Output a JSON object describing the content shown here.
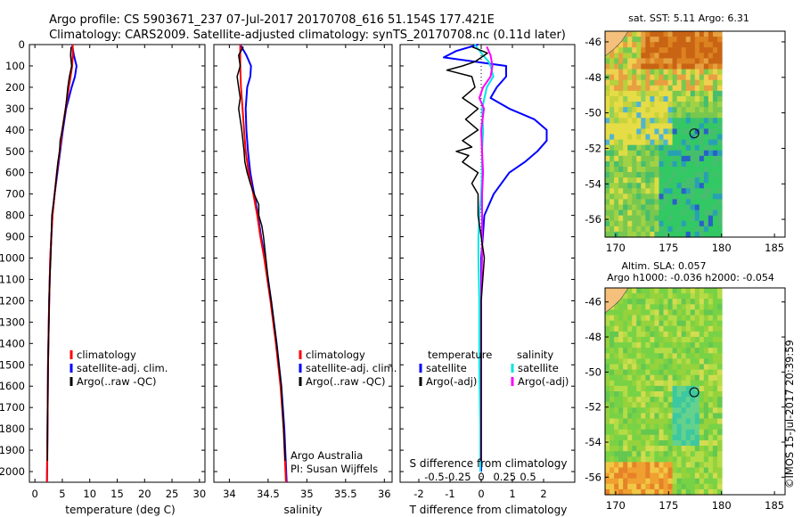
{
  "header": {
    "line1": "Argo profile: CS 5903671_237 07-Jul-2017 20170708_616 51.154S 177.421E",
    "line2": "Climatology: CARS2009. Satellite-adjusted climatology: synTS_20170708.nc (0.11d later)"
  },
  "colors": {
    "climatology": "#ff0000",
    "satellite": "#0000ff",
    "argo": "#000000",
    "salinity_satellite": "#00e5e5",
    "salinity_argo": "#ff00ff"
  },
  "chart_data": [
    {
      "type": "line",
      "panel": "temperature",
      "xlabel": "temperature (deg C)",
      "xlim": [
        -1,
        31
      ],
      "xticks": [
        "0",
        "5",
        "10",
        "15",
        "20",
        "25",
        "30"
      ],
      "ylim": [
        2050,
        0
      ],
      "yticks": [
        "0",
        "100",
        "200",
        "300",
        "400",
        "500",
        "600",
        "700",
        "800",
        "900",
        "1000",
        "1100",
        "1200",
        "1300",
        "1400",
        "1500",
        "1600",
        "1700",
        "1800",
        "1900",
        "2000"
      ],
      "legend": [
        "climatology",
        "satellite-adj. clim.",
        "Argo(..raw -QC)"
      ],
      "series": [
        {
          "name": "climatology",
          "depth": [
            0,
            50,
            100,
            150,
            200,
            250,
            300,
            400,
            500,
            600,
            700,
            800,
            900,
            1000,
            1200,
            1500,
            1800,
            2050
          ],
          "values": [
            6.9,
            6.9,
            6.8,
            6.5,
            6.2,
            5.9,
            5.6,
            5.0,
            4.5,
            4.0,
            3.6,
            3.2,
            3.0,
            2.8,
            2.6,
            2.4,
            2.3,
            2.2
          ]
        },
        {
          "name": "satellite-adj. clim.",
          "depth": [
            0,
            50,
            100,
            150,
            200,
            250,
            300,
            400,
            500,
            600,
            700,
            800,
            900,
            1000,
            1200,
            1500,
            1800,
            2050
          ],
          "values": [
            6.8,
            7.1,
            7.6,
            7.3,
            6.7,
            6.2,
            5.7,
            5.1,
            4.6,
            4.1,
            3.6,
            3.2,
            3.0,
            2.8,
            2.6,
            2.4,
            2.3,
            2.2
          ]
        },
        {
          "name": "Argo(..raw -QC)",
          "depth": [
            10,
            50,
            100,
            150,
            200,
            250,
            300,
            400,
            450,
            500,
            550,
            600,
            700,
            800,
            900,
            1000,
            1100,
            1200,
            1500,
            1800,
            1950
          ],
          "values": [
            6.6,
            6.5,
            6.7,
            6.3,
            6.0,
            5.8,
            5.6,
            5.0,
            4.6,
            4.5,
            4.2,
            4.0,
            3.6,
            3.1,
            3.0,
            2.9,
            2.7,
            2.6,
            2.4,
            2.3,
            2.3
          ]
        }
      ]
    },
    {
      "type": "line",
      "panel": "salinity",
      "xlabel": "salinity",
      "xlim": [
        33.8,
        36.1
      ],
      "xticks": [
        "34",
        "34.5",
        "35",
        "35.5",
        "36"
      ],
      "ylim": [
        2050,
        0
      ],
      "legend": [
        "climatology",
        "satellite-adj. clim.",
        "Argo(..raw -QC)"
      ],
      "annotations": [
        "Argo Australia",
        "PI: Susan Wijffels"
      ],
      "series": [
        {
          "name": "climatology",
          "depth": [
            0,
            100,
            200,
            300,
            400,
            500,
            600,
            700,
            800,
            900,
            1000,
            1200,
            1400,
            1600,
            1800,
            2050
          ],
          "values": [
            34.14,
            34.14,
            34.15,
            34.17,
            34.19,
            34.21,
            34.25,
            34.31,
            34.36,
            34.4,
            34.45,
            34.53,
            34.6,
            34.66,
            34.7,
            34.73
          ]
        },
        {
          "name": "satellite-adj. clim.",
          "depth": [
            0,
            50,
            100,
            150,
            200,
            300,
            400,
            500,
            600,
            700,
            800,
            900,
            1000,
            1200,
            1400,
            1600,
            1800,
            2050
          ],
          "values": [
            34.14,
            34.22,
            34.28,
            34.27,
            34.23,
            34.21,
            34.22,
            34.24,
            34.27,
            34.32,
            34.37,
            34.41,
            34.46,
            34.54,
            34.61,
            34.67,
            34.71,
            34.74
          ]
        },
        {
          "name": "Argo(..raw -QC)",
          "depth": [
            10,
            50,
            100,
            150,
            200,
            250,
            300,
            400,
            500,
            550,
            600,
            650,
            700,
            750,
            800,
            850,
            900,
            1000,
            1100,
            1200,
            1400,
            1600,
            1800,
            1950
          ],
          "values": [
            34.18,
            34.12,
            34.14,
            34.1,
            34.12,
            34.14,
            34.12,
            34.16,
            34.19,
            34.2,
            34.23,
            34.27,
            34.32,
            34.38,
            34.38,
            34.42,
            34.44,
            34.47,
            34.5,
            34.54,
            34.61,
            34.67,
            34.7,
            34.72
          ]
        }
      ]
    },
    {
      "type": "line",
      "panel": "differences",
      "xlabel": "T difference from climatology",
      "xlim": [
        -2.6,
        3.0
      ],
      "xticks": [
        "-2",
        "-1",
        "0",
        "1",
        "2"
      ],
      "xlabel_top": "S difference from climatology",
      "xticks_top": [
        "-0.5",
        "-0.25",
        "0",
        "0.25",
        "0.5"
      ],
      "ylim": [
        2050,
        0
      ],
      "legend_temperature_title": "temperature",
      "legend_salinity_title": "salinity",
      "legend": [
        "satellite",
        "Argo(-adj)",
        "satellite",
        "Argo(-adj)"
      ],
      "series": [
        {
          "name": "satellite",
          "group": "temperature",
          "depth": [
            0,
            30,
            60,
            100,
            150,
            200,
            250,
            300,
            350,
            400,
            450,
            500,
            550,
            600,
            700,
            800,
            900,
            1000,
            1200,
            1500,
            1800,
            2000
          ],
          "values": [
            -0.1,
            -0.8,
            -1.2,
            0.8,
            0.8,
            0.5,
            0.3,
            0.9,
            1.7,
            2.1,
            2.1,
            1.8,
            1.4,
            0.9,
            0.4,
            0.1,
            0.05,
            0.0,
            0.0,
            0.0,
            0.0,
            0.0
          ]
        },
        {
          "name": "Argo(-adj)",
          "group": "temperature",
          "depth": [
            10,
            40,
            80,
            100,
            120,
            150,
            200,
            250,
            300,
            350,
            400,
            450,
            480,
            500,
            520,
            550,
            600,
            650,
            700,
            800,
            900,
            1000,
            1200,
            1500,
            1800,
            1950
          ],
          "values": [
            -0.3,
            0.2,
            -0.2,
            -0.6,
            -1.1,
            -0.3,
            -0.2,
            -0.6,
            -0.1,
            -0.5,
            -0.1,
            -0.6,
            -0.3,
            -0.8,
            -0.4,
            -0.6,
            -0.1,
            -0.3,
            -0.1,
            -0.1,
            0.0,
            0.1,
            0.0,
            0.0,
            0.0,
            0.0
          ]
        },
        {
          "name": "satellite",
          "group": "salinity",
          "depth": [
            0,
            50,
            80,
            100,
            150,
            200,
            300,
            400,
            500,
            600,
            700,
            800,
            900,
            1000,
            1200,
            1500,
            1800,
            2000
          ],
          "values": [
            -0.07,
            0.02,
            0.08,
            0.1,
            0.13,
            0.06,
            0.01,
            0.02,
            0.01,
            0.01,
            0.0,
            -0.02,
            -0.03,
            -0.03,
            -0.02,
            -0.02,
            -0.01,
            -0.01
          ]
        },
        {
          "name": "Argo(-adj)",
          "group": "salinity",
          "depth": [
            10,
            50,
            100,
            150,
            200,
            250,
            300,
            400,
            500,
            600,
            700,
            800,
            900,
            1000,
            1200,
            1500,
            1800,
            1950
          ],
          "values": [
            0.06,
            0.1,
            0.12,
            0.1,
            0.02,
            -0.02,
            0.03,
            0.0,
            0.01,
            0.02,
            0.01,
            0.01,
            0.01,
            0.01,
            0.0,
            0.0,
            0.0,
            0.0
          ]
        }
      ]
    },
    {
      "type": "heatmap",
      "panel": "sst_map",
      "title": "sat. SST: 5.11  Argo: 6.31",
      "xlim": [
        169,
        186
      ],
      "xticks": [
        "170",
        "175",
        "180",
        "185"
      ],
      "ylim": [
        -57,
        -45.4
      ],
      "yticks": [
        "-46",
        "-48",
        "-50",
        "-52",
        "-54",
        "-56"
      ],
      "marker": {
        "lon": 177.421,
        "lat": -51.154
      }
    },
    {
      "type": "heatmap",
      "panel": "sla_map",
      "title_line1": "Altim. SLA: 0.057",
      "title_line2": "Argo h1000: -0.036 h2000: -0.054",
      "xlim": [
        169,
        186
      ],
      "xticks": [
        "170",
        "175",
        "180",
        "185"
      ],
      "ylim": [
        -57,
        -45.2
      ],
      "yticks": [
        "-46",
        "-48",
        "-50",
        "-52",
        "-54",
        "-56"
      ],
      "marker": {
        "lon": 177.421,
        "lat": -51.154
      }
    }
  ],
  "footer": {
    "credit": "©IMOS 15-Jul-2017 20:39:59"
  }
}
